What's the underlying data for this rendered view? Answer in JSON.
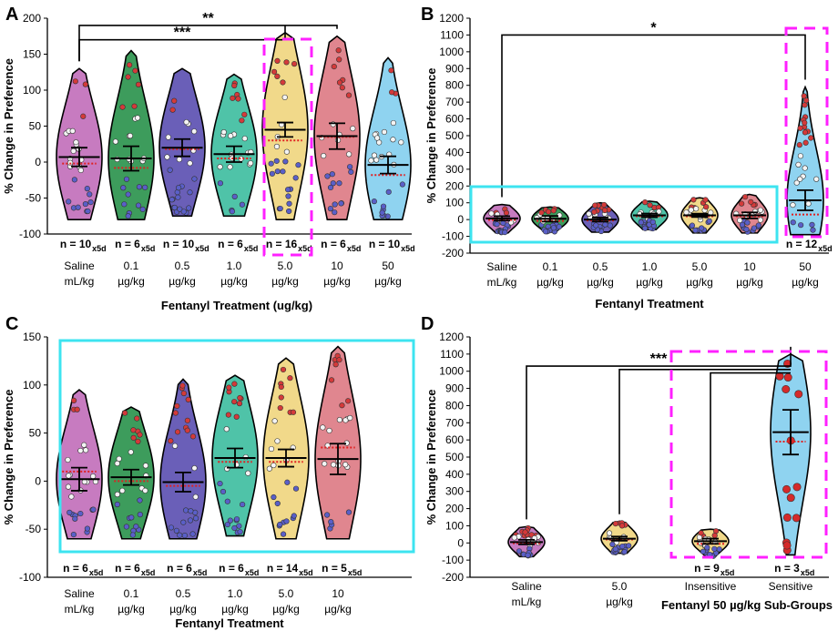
{
  "colors": {
    "violin": [
      "#c77bc0",
      "#3d9c5c",
      "#6a5fb8",
      "#4fc3a8",
      "#f1d98a",
      "#e0868f",
      "#8fd3f0"
    ],
    "sens_violin": "#8fd3f0",
    "magenta": "#ff20ff",
    "cyan": "#3de4f0",
    "median": "#e02020"
  },
  "chart_data": [
    {
      "panel": "A",
      "type": "violin",
      "ylabel": "% Change in Preference",
      "xlabel": "Fentanyl Treatment (ug/kg)",
      "ylim": [
        -100,
        200
      ],
      "yticks": [
        -100,
        -50,
        0,
        50,
        100,
        150,
        200
      ],
      "categories": [
        {
          "line1": "Saline",
          "line2": "mL/kg",
          "mean": 7,
          "sem": 13,
          "median": -2,
          "min": -80,
          "max": 130,
          "n": "n = 10",
          "n_sub": "x5d"
        },
        {
          "line1": "0.1",
          "line2": "µg/kg",
          "mean": 5,
          "sem": 17,
          "median": -8,
          "min": -80,
          "max": 155,
          "n": "n = 6",
          "n_sub": "x5d"
        },
        {
          "line1": "0.5",
          "line2": "µg/kg",
          "mean": 20,
          "sem": 12,
          "median": 18,
          "min": -75,
          "max": 130,
          "n": "n = 10",
          "n_sub": "x5d"
        },
        {
          "line1": "1.0",
          "line2": "µg/kg",
          "mean": 11,
          "sem": 11,
          "median": 5,
          "min": -75,
          "max": 122,
          "n": "n = 6",
          "n_sub": "x5d"
        },
        {
          "line1": "5.0",
          "line2": "µg/kg",
          "mean": 45,
          "sem": 10,
          "median": 30,
          "min": -80,
          "max": 180,
          "n": "n = 16",
          "n_sub": "x5d"
        },
        {
          "line1": "10",
          "line2": "µg/kg",
          "mean": 36,
          "sem": 18,
          "median": 35,
          "min": -80,
          "max": 175,
          "n": "n = 6",
          "n_sub": "x5d"
        },
        {
          "line1": "50",
          "line2": "µg/kg",
          "mean": -4,
          "sem": 12,
          "median": -18,
          "min": -80,
          "max": 145,
          "n": "n = 10",
          "n_sub": "x5d"
        }
      ],
      "significance": [
        {
          "label": "**",
          "from": 0,
          "to": 5,
          "y": 190
        },
        {
          "label": "***",
          "from": 0,
          "to": 4,
          "y": 170
        }
      ]
    },
    {
      "panel": "B",
      "type": "violin",
      "ylabel": "% Change in Preference",
      "xlabel": "Fentanyl Treatment",
      "ylim": [
        -200,
        1200
      ],
      "yticks": [
        -200,
        -100,
        0,
        100,
        200,
        300,
        400,
        500,
        600,
        700,
        800,
        900,
        1000,
        1100,
        1200
      ],
      "categories": [
        {
          "line1": "Saline",
          "line2": "mL/kg",
          "mean": 7,
          "sem": 13,
          "median": -2,
          "min": -80,
          "max": 90,
          "n": "",
          "n_sub": ""
        },
        {
          "line1": "0.1",
          "line2": "µg/kg",
          "mean": 5,
          "sem": 17,
          "median": -8,
          "min": -75,
          "max": 75,
          "n": "",
          "n_sub": ""
        },
        {
          "line1": "0.5",
          "line2": "µg/kg",
          "mean": 0,
          "sem": 12,
          "median": -5,
          "min": -75,
          "max": 100,
          "n": "",
          "n_sub": ""
        },
        {
          "line1": "1.0",
          "line2": "µg/kg",
          "mean": 25,
          "sem": 11,
          "median": 20,
          "min": -60,
          "max": 110,
          "n": "",
          "n_sub": ""
        },
        {
          "line1": "5.0",
          "line2": "µg/kg",
          "mean": 25,
          "sem": 10,
          "median": 20,
          "min": -80,
          "max": 130,
          "n": "",
          "n_sub": ""
        },
        {
          "line1": "10",
          "line2": "µg/kg",
          "mean": 25,
          "sem": 18,
          "median": 20,
          "min": -80,
          "max": 150,
          "n": "",
          "n_sub": ""
        },
        {
          "line1": "50",
          "line2": "µg/kg",
          "mean": 115,
          "sem": 60,
          "median": 30,
          "min": -90,
          "max": 790,
          "n": "n = 12",
          "n_sub": "x5d"
        }
      ],
      "significance": [
        {
          "label": "*",
          "from": 0,
          "to": 6,
          "y": 1100
        }
      ]
    },
    {
      "panel": "C",
      "type": "violin",
      "ylabel": "% Change in Preference",
      "xlabel": "Fentanyl Treatment",
      "ylim": [
        -100,
        150
      ],
      "yticks": [
        -100,
        -50,
        0,
        50,
        100,
        150
      ],
      "categories": [
        {
          "line1": "Saline",
          "line2": "mL/kg",
          "mean": 2,
          "sem": 12,
          "median": 10,
          "min": -60,
          "max": 95,
          "n": "n = 6",
          "n_sub": "x5d"
        },
        {
          "line1": "0.1",
          "line2": "µg/kg",
          "mean": 4,
          "sem": 8,
          "median": 0,
          "min": -60,
          "max": 77,
          "n": "n = 6",
          "n_sub": "x5d"
        },
        {
          "line1": "0.5",
          "line2": "µg/kg",
          "mean": -1,
          "sem": 10,
          "median": -5,
          "min": -60,
          "max": 106,
          "n": "n = 6",
          "n_sub": "x5d"
        },
        {
          "line1": "1.0",
          "line2": "µg/kg",
          "mean": 24,
          "sem": 10,
          "median": 20,
          "min": -57,
          "max": 110,
          "n": "n = 6",
          "n_sub": "x5d"
        },
        {
          "line1": "5.0",
          "line2": "µg/kg",
          "mean": 24,
          "sem": 9,
          "median": 20,
          "min": -60,
          "max": 128,
          "n": "n = 14",
          "n_sub": "x5d"
        },
        {
          "line1": "10",
          "line2": "µg/kg",
          "mean": 23,
          "sem": 16,
          "median": 35,
          "min": -60,
          "max": 140,
          "n": "n = 5",
          "n_sub": "x5d"
        }
      ],
      "significance": []
    },
    {
      "panel": "D",
      "type": "violin",
      "ylabel": "% Change in Preference",
      "xlabel": "Fentanyl 50 µg/kg Sub-Groups",
      "ylim": [
        -200,
        1200
      ],
      "yticks": [
        -200,
        -100,
        0,
        100,
        200,
        300,
        400,
        500,
        600,
        700,
        800,
        900,
        1000,
        1100,
        1200
      ],
      "categories": [
        {
          "line1": "Saline",
          "line2": "mL/kg",
          "mean": 5,
          "sem": 13,
          "median": -2,
          "min": -80,
          "max": 95,
          "n": "",
          "n_sub": ""
        },
        {
          "line1": "5.0",
          "line2": "µg/kg",
          "mean": 25,
          "sem": 12,
          "median": 20,
          "min": -60,
          "max": 125,
          "n": "",
          "n_sub": ""
        },
        {
          "line1": "Insensitive",
          "line2": "",
          "mean": 10,
          "sem": 15,
          "median": -5,
          "min": -80,
          "max": 80,
          "n": "n = 9",
          "n_sub": "x5d"
        },
        {
          "line1": "Sensitive",
          "line2": "",
          "mean": 645,
          "sem": 130,
          "median": 590,
          "min": -70,
          "max": 1100,
          "n": "n = 3",
          "n_sub": "x5d"
        }
      ],
      "significance": [
        {
          "label": "***",
          "from": 0,
          "to": 3,
          "y": 1030
        }
      ]
    }
  ]
}
